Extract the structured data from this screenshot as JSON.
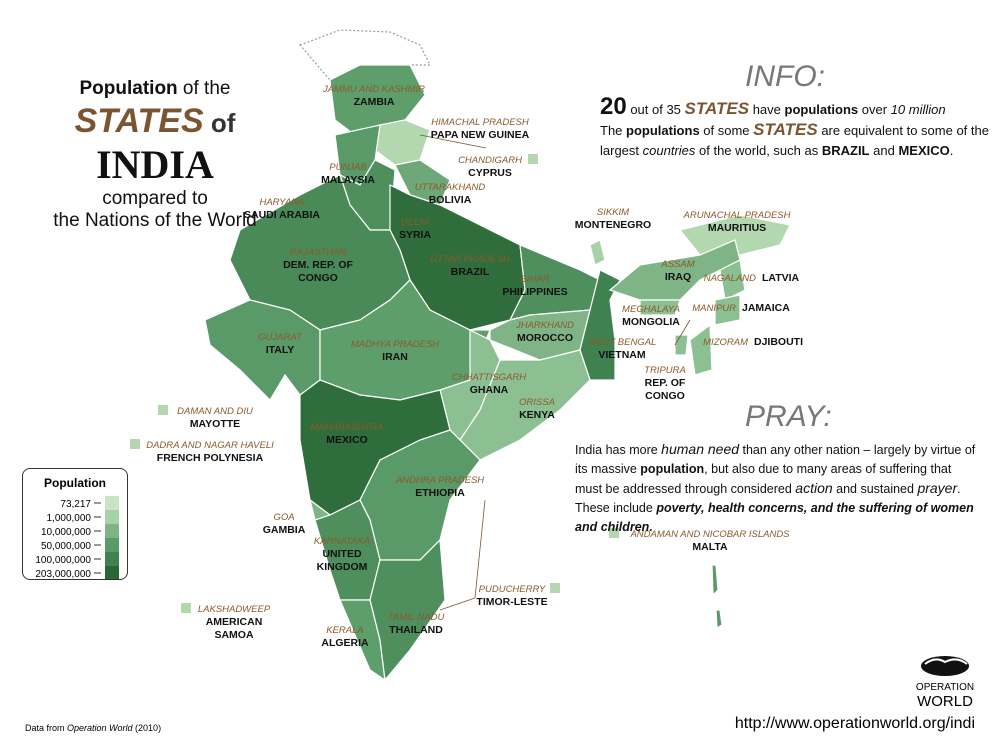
{
  "title": {
    "lines": [
      [
        {
          "text": "Population",
          "style": "bold"
        },
        {
          "text": " of the",
          "style": "plain"
        }
      ],
      [
        {
          "text": "STATES",
          "style": "brand"
        },
        {
          "text": " of ",
          "style": "brand-small"
        },
        {
          "text": "INDIA",
          "style": "huge"
        }
      ],
      [
        {
          "text": "compared to",
          "style": "plain"
        }
      ],
      [
        {
          "text": "the Nations of the World",
          "style": "plain"
        }
      ]
    ]
  },
  "info": {
    "heading": "INFO:",
    "lines": [
      [
        {
          "text": "20",
          "style": "big"
        },
        {
          "text": " out of 35 ",
          "style": "plain"
        },
        {
          "text": "STATES",
          "style": "brand"
        },
        {
          "text": " have ",
          "style": "plain"
        },
        {
          "text": "populations",
          "style": "bold"
        },
        {
          "text": " over ",
          "style": "plain"
        },
        {
          "text": "10 million",
          "style": "italic"
        }
      ],
      [
        {
          "text": "The ",
          "style": "plain"
        },
        {
          "text": "populations",
          "style": "bold"
        },
        {
          "text": " of some ",
          "style": "plain"
        },
        {
          "text": "STATES",
          "style": "brand"
        },
        {
          "text": " are equivalent to some of the largest ",
          "style": "plain"
        },
        {
          "text": "countries",
          "style": "italic"
        },
        {
          "text": " of the world, such as ",
          "style": "plain"
        },
        {
          "text": "BRAZIL",
          "style": "bold"
        },
        {
          "text": " and ",
          "style": "plain"
        },
        {
          "text": "MEXICO",
          "style": "bold"
        },
        {
          "text": ".",
          "style": "plain"
        }
      ]
    ]
  },
  "pray": {
    "heading": "PRAY:",
    "lines": [
      [
        {
          "text": "India has more ",
          "style": "plain"
        },
        {
          "text": "human need",
          "style": "italic-big"
        },
        {
          "text": " than any other nation – largely by virtue of its massive ",
          "style": "plain"
        },
        {
          "text": "population",
          "style": "bold"
        },
        {
          "text": ", but also due to many areas of suffering that must be addressed through considered ",
          "style": "plain"
        },
        {
          "text": "action",
          "style": "italic-big"
        },
        {
          "text": " and sustained ",
          "style": "plain"
        },
        {
          "text": "prayer",
          "style": "italic-big"
        },
        {
          "text": ".  These include ",
          "style": "plain"
        },
        {
          "text": "poverty, health concerns, and the suffering of women and children.",
          "style": "bold-italic"
        }
      ]
    ]
  },
  "legend": {
    "title": "Population",
    "labels": [
      "73,217",
      "1,000,000",
      "10,000,000",
      "50,000,000",
      "100,000,000",
      "203,000,000"
    ],
    "colors": [
      "#c8e4c3",
      "#a9d1a8",
      "#7fb487",
      "#5a9a68",
      "#3f8150",
      "#2a6636"
    ]
  },
  "states": [
    {
      "state": "JAMMU AND KASHMIR",
      "country": [
        "ZAMBIA"
      ]
    },
    {
      "state": "HIMACHAL PRADESH",
      "country": [
        "PAPA NEW GUINEA"
      ]
    },
    {
      "state": "CHANDIGARH",
      "country": [
        "CYPRUS"
      ]
    },
    {
      "state": "PUNJAB",
      "country": [
        "MALAYSIA"
      ]
    },
    {
      "state": "UTTARAKHAND",
      "country": [
        "BOLIVIA"
      ]
    },
    {
      "state": "HARYANA",
      "country": [
        "SAUDI ARABIA"
      ]
    },
    {
      "state": "DELHI",
      "country": [
        "SYRIA"
      ]
    },
    {
      "state": "RAJASTHAN",
      "country": [
        "DEM. REP. OF",
        "CONGO"
      ]
    },
    {
      "state": "UTTAR PRADESH",
      "country": [
        "BRAZIL"
      ]
    },
    {
      "state": "SIKKIM",
      "country": [
        "MONTENEGRO"
      ]
    },
    {
      "state": "ARUNACHAL PRADESH",
      "country": [
        "MAURITIUS"
      ]
    },
    {
      "state": "ASSAM",
      "country": [
        "IRAQ"
      ]
    },
    {
      "state": "NAGALAND",
      "country": [
        "LATVIA"
      ]
    },
    {
      "state": "BIHAR",
      "country": [
        "PHILIPPINES"
      ]
    },
    {
      "state": "MEGHALAYA",
      "country": [
        "MONGOLIA"
      ]
    },
    {
      "state": "MANIPUR",
      "country": [
        "JAMAICA"
      ]
    },
    {
      "state": "GUJARAT",
      "country": [
        "ITALY"
      ]
    },
    {
      "state": "MADHYA PRADESH",
      "country": [
        "IRAN"
      ]
    },
    {
      "state": "JHARKHAND",
      "country": [
        "MOROCCO"
      ]
    },
    {
      "state": "WEST BENGAL",
      "country": [
        "VIETNAM"
      ]
    },
    {
      "state": "MIZORAM",
      "country": [
        "DJIBOUTI"
      ]
    },
    {
      "state": "TRIPURA",
      "country": [
        "REP. OF",
        "CONGO"
      ]
    },
    {
      "state": "CHHATTISGARH",
      "country": [
        "GHANA"
      ]
    },
    {
      "state": "ORISSA",
      "country": [
        "KENYA"
      ]
    },
    {
      "state": "DAMAN AND DIU",
      "country": [
        "MAYOTTE"
      ]
    },
    {
      "state": "DADRA AND NAGAR HAVELI",
      "country": [
        "FRENCH POLYNESIA"
      ]
    },
    {
      "state": "MAHARASHTRA",
      "country": [
        "MEXICO"
      ]
    },
    {
      "state": "ANDHRA PRADESH",
      "country": [
        "ETHIOPIA"
      ]
    },
    {
      "state": "GOA",
      "country": [
        "GAMBIA"
      ]
    },
    {
      "state": "KARNATAKA",
      "country": [
        "UNITED",
        "KINGDOM"
      ]
    },
    {
      "state": "ANDAMAN AND NICOBAR ISLANDS",
      "country": [
        "MALTA"
      ]
    },
    {
      "state": "PUDUCHERRY",
      "country": [
        "TIMOR-LESTE"
      ]
    },
    {
      "state": "LAKSHADWEEP",
      "country": [
        "AMERICAN",
        "SAMOA"
      ]
    },
    {
      "state": "KERALA",
      "country": [
        "ALGERIA"
      ]
    },
    {
      "state": "TAMIL NADU",
      "country": [
        "THAILAND"
      ]
    }
  ],
  "source": {
    "prefix": "Data from ",
    "name": "Operation World",
    "suffix": " (2010)"
  },
  "logo": {
    "line1": "OPERATION",
    "line2": "WORLD"
  },
  "url": "http://www.operationworld.org/indi"
}
